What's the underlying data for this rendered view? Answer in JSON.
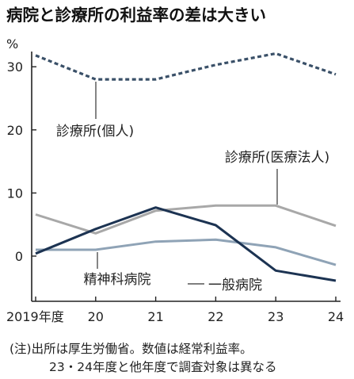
{
  "title": "病院と診療所の利益率の差は大きい",
  "note": {
    "line1": "(注)出所は厚生労働省。数値は経常利益率。",
    "line2": "23・24年度と他年度で調査対象は異なる"
  },
  "chart_data": {
    "type": "line",
    "title": "病院と診療所の利益率の差は大きい",
    "categories": [
      "2019年度",
      "20",
      "21",
      "22",
      "23",
      "24"
    ],
    "y_unit": "%",
    "ylim": [
      -5,
      34
    ],
    "yticks": [
      0,
      10,
      20,
      30
    ],
    "grid": false,
    "legend": "inline labels",
    "series": [
      {
        "name": "診療所(個人)",
        "values": [
          31.8,
          28.0,
          28.0,
          30.3,
          32.1,
          28.8
        ],
        "color": "#3a5068",
        "style": "dashed"
      },
      {
        "name": "診療所(医療法人)",
        "values": [
          6.6,
          3.6,
          7.2,
          8.0,
          8.0,
          4.8
        ],
        "color": "#a8a8a8",
        "style": "solid"
      },
      {
        "name": "精神科病院",
        "values": [
          1.0,
          1.0,
          2.3,
          2.6,
          1.4,
          -1.4
        ],
        "color": "#8fa3b6",
        "style": "solid"
      },
      {
        "name": "一般病院",
        "values": [
          0.4,
          4.3,
          7.7,
          4.9,
          -2.3,
          -3.9
        ],
        "color": "#1c3352",
        "style": "solid"
      }
    ]
  }
}
